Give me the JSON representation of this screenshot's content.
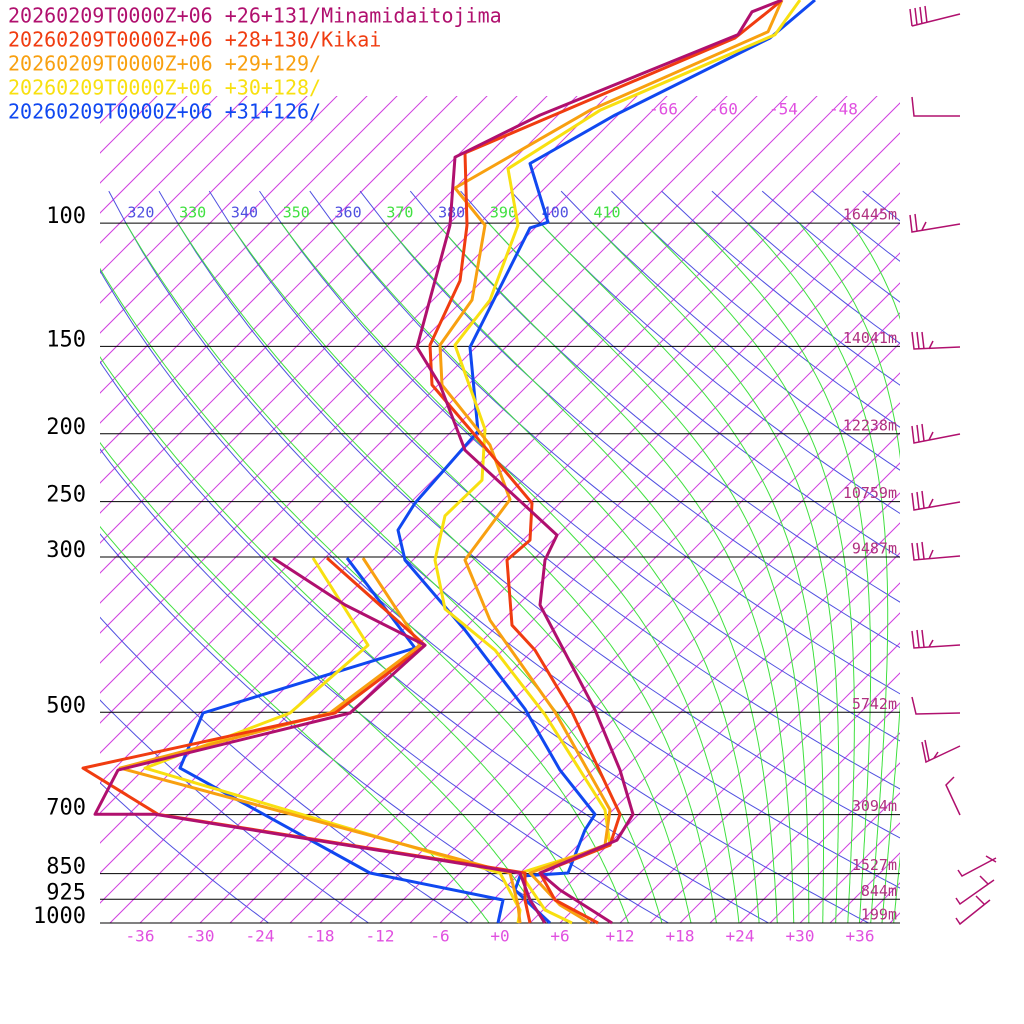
{
  "chart_data": {
    "type": "skewt",
    "xlim": [
      -40,
      40
    ],
    "ylim": [
      1000,
      48
    ],
    "log_y": true,
    "xticks": [
      -36,
      -30,
      -24,
      -18,
      -12,
      -6,
      {
        "value": 0,
        "label": "+0"
      },
      {
        "value": 6,
        "label": "+6"
      },
      {
        "value": 12,
        "label": "+12"
      },
      {
        "value": 18,
        "label": "+18"
      },
      {
        "value": 24,
        "label": "+24"
      },
      {
        "value": 30,
        "label": "+30"
      },
      {
        "value": 36,
        "label": "+36"
      }
    ],
    "yticks": [
      100,
      150,
      200,
      250,
      300,
      500,
      700,
      850,
      925,
      1000
    ],
    "height_labels": [
      "16445m",
      "14041m",
      "12238m",
      "10759m",
      "9487m",
      "5742m",
      "3094m",
      "1527m",
      "844m",
      "199m"
    ],
    "isotherm_labels": [
      -66,
      -60,
      -54,
      -48
    ],
    "dry_adiabat_labels": [
      320,
      340,
      360,
      380,
      400
    ],
    "moist_adiabat_labels": [
      330,
      350,
      370,
      390,
      410
    ],
    "series": [
      {
        "name": "20260209T0000Z+06 +26+131/Minamidaitojima",
        "color": "#b0106e",
        "x": [
          28.2,
          25.2,
          23.8,
          4,
          -4.5,
          -5,
          -8.3,
          -6,
          -3.5,
          5.7,
          4.5,
          4,
          9.5,
          12,
          13.3,
          11.7,
          4,
          6,
          11.2,
          null,
          4.5,
          3,
          2,
          -34.5,
          -40.5,
          -38.2,
          -15,
          -7.5,
          -15.5,
          -22.7
        ],
        "values": [
          48,
          49.9,
          53.8,
          70.1,
          80.5,
          100.7,
          150.4,
          170.3,
          211.1,
          279.1,
          302.9,
          351.2,
          495.9,
          604.7,
          699.3,
          761.2,
          848.4,
          897,
          1000,
          null,
          1000,
          927.1,
          848.4,
          699.3,
          699.3,
          604.7,
          501.2,
          400.9,
          351.2,
          301
        ]
      },
      {
        "name": "20260209T0000Z+06 +28+130/Kikai",
        "color": "#f03c10",
        "x": [
          28.2,
          27,
          23.5,
          -3.5,
          -3.3,
          -4,
          -7,
          -6.8,
          -3,
          3.2,
          3,
          0.7,
          1.2,
          3.5,
          7.2,
          12,
          11,
          4,
          5.5,
          9.8,
          null,
          3,
          2.5,
          2.5,
          -34.2,
          -41.7,
          -16.5,
          -7.5,
          -17.3
        ],
        "values": [
          48,
          49.6,
          54.4,
          79.4,
          100.7,
          120.9,
          149.4,
          170.3,
          197.1,
          251.2,
          283.7,
          302.9,
          375.4,
          407.4,
          499.5,
          699.3,
          773.9,
          848.4,
          927.1,
          1000,
          null,
          1000,
          927.1,
          848.4,
          699.3,
          600.8,
          501.2,
          400.9,
          301
        ]
      },
      {
        "name": "20260209T0000Z+06 +29+129/",
        "color": "#f8a010",
        "x": [
          28.2,
          26.8,
          9,
          -4.5,
          -1.5,
          -2.8,
          -6,
          -5.8,
          -1,
          1,
          -3.5,
          -1,
          5.5,
          11,
          10.5,
          3,
          6,
          9,
          null,
          2,
          1.8,
          1,
          -38,
          -17,
          -8,
          -13.7
        ],
        "values": [
          48,
          53.3,
          69,
          89.1,
          100.7,
          128.8,
          149.4,
          170.3,
          207.6,
          248.3,
          302.9,
          369.3,
          499.5,
          689,
          773.9,
          848.4,
          942.5,
          1000,
          null,
          1000,
          942.5,
          848.4,
          600.8,
          501.2,
          400.9,
          301
        ]
      },
      {
        "name": "20260209T0000Z+06 +30+128/",
        "color": "#f8e010",
        "x": [
          30,
          27.5,
          10,
          0.8,
          1.8,
          -1,
          -4.5,
          -1.5,
          -1.8,
          -5.5,
          -6.5,
          -5.5,
          -0.5,
          4.5,
          10.5,
          11,
          2,
          4.5,
          7.2,
          null,
          1.8,
          2,
          0,
          -35.5,
          -21,
          -13.2,
          -18.7
        ],
        "values": [
          48,
          53.8,
          69,
          83.6,
          100.7,
          128.8,
          149.4,
          197.1,
          233,
          261.9,
          303,
          355.9,
          407.4,
          504,
          689,
          773.9,
          848.4,
          958,
          1000,
          null,
          1000,
          958,
          848.4,
          600.8,
          501.2,
          400.9,
          301
        ]
      },
      {
        "name": "20260209T0000Z+06 +31+126/",
        "color": "#1048f0",
        "x": [
          31.5,
          27,
          11.5,
          3,
          4.8,
          3,
          -3,
          -2.2,
          -8.5,
          -10.2,
          -9.5,
          -3.5,
          2.5,
          6,
          9.5,
          8.5,
          6.8,
          2,
          1.5,
          5,
          null,
          -0.2,
          0.3,
          -13,
          -32,
          -29.7,
          -8.5,
          -15.3
        ],
        "values": [
          48,
          54.4,
          70.1,
          82.2,
          99.7,
          101.6,
          150.4,
          198.4,
          251.2,
          274.5,
          303,
          381.5,
          494.6,
          604.7,
          699.3,
          736.2,
          848.4,
          856.9,
          897,
          1000,
          null,
          1000,
          927.1,
          848.4,
          600.8,
          501.2,
          404.7,
          301
        ]
      }
    ]
  }
}
